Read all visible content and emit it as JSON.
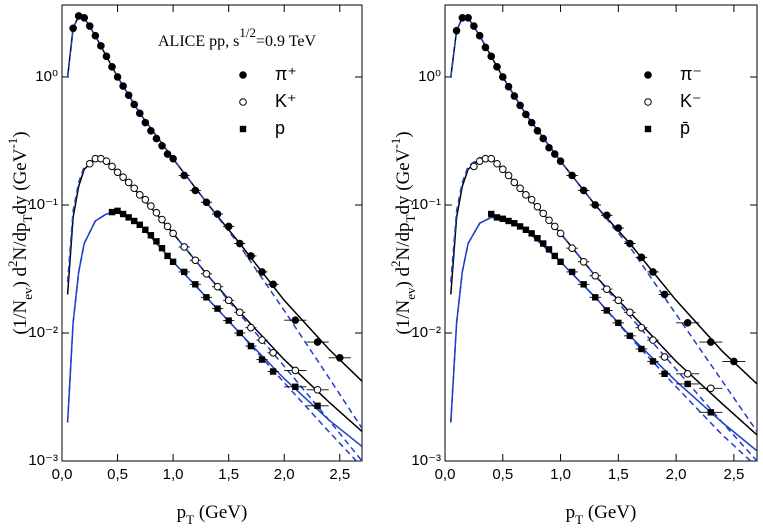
{
  "chart_data": [
    {
      "type": "scatter",
      "annotation": [
        {
          "t": "ALICE pp, s"
        },
        {
          "t": "1/2",
          "s": "sup"
        },
        {
          "t": "=0.9 TeV"
        }
      ],
      "xlabel": [
        {
          "t": "p"
        },
        {
          "t": "T",
          "s": "sub"
        },
        {
          "t": " (GeV)"
        }
      ],
      "ylabel": [
        {
          "t": "(1/N"
        },
        {
          "t": "ev",
          "s": "sub"
        },
        {
          "t": ") d"
        },
        {
          "t": "2",
          "s": "sup"
        },
        {
          "t": "N/dp"
        },
        {
          "t": "T",
          "s": "sub"
        },
        {
          "t": "dy  (GeV"
        },
        {
          "t": "-1",
          "s": "sup"
        },
        {
          "t": ")"
        }
      ],
      "log_y": true,
      "xlim": [
        0,
        2.7
      ],
      "ylim": [
        0.001,
        3.65
      ],
      "xticks": [
        {
          "value": 0,
          "label": "0,0"
        },
        {
          "value": 0.5,
          "label": "0,5"
        },
        {
          "value": 1,
          "label": "1,0"
        },
        {
          "value": 1.5,
          "label": "1,5"
        },
        {
          "value": 2,
          "label": "2,0"
        },
        {
          "value": 2.5,
          "label": "2,5"
        }
      ],
      "yticks": [
        {
          "value": 0.001,
          "label": "10⁻³"
        },
        {
          "value": 0.01,
          "label": "10⁻²"
        },
        {
          "value": 0.1,
          "label": "10⁻¹"
        },
        {
          "value": 1,
          "label": "10⁰"
        }
      ],
      "series": [
        {
          "name": "π⁺",
          "color": "#000000",
          "marker": "circle",
          "x": [
            0.1,
            0.15,
            0.2,
            0.25,
            0.3,
            0.35,
            0.4,
            0.45,
            0.5,
            0.55,
            0.6,
            0.65,
            0.7,
            0.75,
            0.8,
            0.85,
            0.9,
            0.95,
            1.0,
            1.1,
            1.2,
            1.3,
            1.4,
            1.5,
            1.6,
            1.7,
            1.8,
            1.9,
            2.1,
            2.3,
            2.5
          ],
          "values": [
            2.4,
            3.0,
            2.9,
            2.5,
            2.1,
            1.75,
            1.45,
            1.2,
            1.0,
            0.85,
            0.72,
            0.61,
            0.52,
            0.44,
            0.38,
            0.33,
            0.29,
            0.25,
            0.23,
            0.17,
            0.13,
            0.105,
            0.085,
            0.068,
            0.05,
            0.04,
            0.03,
            0.024,
            0.0126,
            0.0085,
            0.0064
          ],
          "xerr": [
            0.025,
            0.025,
            0.025,
            0.025,
            0.025,
            0.025,
            0.025,
            0.025,
            0.025,
            0.025,
            0.025,
            0.025,
            0.025,
            0.025,
            0.025,
            0.025,
            0.025,
            0.025,
            0.025,
            0.05,
            0.05,
            0.05,
            0.05,
            0.05,
            0.05,
            0.05,
            0.05,
            0.05,
            0.1,
            0.1,
            0.1
          ]
        },
        {
          "name": "K⁺",
          "color": "#000000",
          "marker": "open-circle",
          "x": [
            0.25,
            0.3,
            0.35,
            0.4,
            0.45,
            0.5,
            0.55,
            0.6,
            0.65,
            0.7,
            0.75,
            0.8,
            0.85,
            0.9,
            0.95,
            1.0,
            1.1,
            1.2,
            1.3,
            1.4,
            1.5,
            1.6,
            1.7,
            1.8,
            1.9,
            2.1,
            2.3
          ],
          "values": [
            0.21,
            0.23,
            0.23,
            0.22,
            0.2,
            0.18,
            0.165,
            0.15,
            0.135,
            0.12,
            0.11,
            0.098,
            0.087,
            0.077,
            0.068,
            0.06,
            0.047,
            0.037,
            0.029,
            0.023,
            0.018,
            0.0145,
            0.011,
            0.0088,
            0.007,
            0.0051,
            0.0036
          ],
          "xerr": [
            0.025,
            0.025,
            0.025,
            0.025,
            0.025,
            0.025,
            0.025,
            0.025,
            0.025,
            0.025,
            0.025,
            0.025,
            0.025,
            0.025,
            0.025,
            0.025,
            0.05,
            0.05,
            0.05,
            0.05,
            0.05,
            0.05,
            0.05,
            0.05,
            0.05,
            0.1,
            0.1
          ]
        },
        {
          "name": "p",
          "color": "#000000",
          "marker": "square",
          "x": [
            0.45,
            0.5,
            0.55,
            0.6,
            0.65,
            0.7,
            0.75,
            0.8,
            0.85,
            0.9,
            0.95,
            1.0,
            1.1,
            1.2,
            1.3,
            1.4,
            1.5,
            1.6,
            1.7,
            1.8,
            1.9,
            2.1,
            2.3
          ],
          "values": [
            0.088,
            0.09,
            0.085,
            0.08,
            0.075,
            0.07,
            0.064,
            0.058,
            0.052,
            0.046,
            0.04,
            0.036,
            0.03,
            0.024,
            0.019,
            0.0155,
            0.0125,
            0.01,
            0.0079,
            0.0062,
            0.005,
            0.0038,
            0.0027
          ],
          "xerr": [
            0.025,
            0.025,
            0.025,
            0.025,
            0.025,
            0.025,
            0.025,
            0.025,
            0.025,
            0.025,
            0.025,
            0.025,
            0.05,
            0.05,
            0.05,
            0.05,
            0.05,
            0.05,
            0.05,
            0.05,
            0.05,
            0.1,
            0.1
          ]
        }
      ],
      "curve_x": [
        0.05,
        0.1,
        0.15,
        0.2,
        0.3,
        0.4,
        0.5,
        0.7,
        1.0,
        1.3,
        1.6,
        2.0,
        2.4,
        2.7
      ],
      "curves": [
        {
          "color": "#000000",
          "dashed": false,
          "values": [
            1.0,
            2.4,
            3.0,
            2.9,
            2.1,
            1.45,
            1.0,
            0.52,
            0.23,
            0.105,
            0.05,
            0.018,
            0.0075,
            0.0042
          ]
        },
        {
          "color": "#1f3fc8",
          "dashed": true,
          "values": [
            1.0,
            2.4,
            3.0,
            2.9,
            2.1,
            1.45,
            1.0,
            0.52,
            0.23,
            0.105,
            0.048,
            0.015,
            0.0045,
            0.0018
          ]
        },
        {
          "color": "#000000",
          "dashed": false,
          "values": [
            0.02,
            0.08,
            0.14,
            0.19,
            0.23,
            0.22,
            0.18,
            0.12,
            0.06,
            0.029,
            0.0145,
            0.0062,
            0.0029,
            0.0017
          ]
        },
        {
          "color": "#1f3fc8",
          "dashed": true,
          "values": [
            0.025,
            0.09,
            0.15,
            0.2,
            0.235,
            0.22,
            0.18,
            0.12,
            0.06,
            0.029,
            0.014,
            0.0055,
            0.0021,
            0.001
          ]
        },
        {
          "color": "#1f3fc8",
          "dashed": false,
          "values": [
            0.002,
            0.012,
            0.03,
            0.05,
            0.075,
            0.085,
            0.088,
            0.07,
            0.036,
            0.019,
            0.01,
            0.0044,
            0.0021,
            0.0013
          ]
        },
        {
          "color": "#1f3fc8",
          "dashed": true,
          "values": [
            0.002,
            0.012,
            0.03,
            0.05,
            0.075,
            0.085,
            0.088,
            0.07,
            0.036,
            0.019,
            0.01,
            0.0041,
            0.0017,
            0.0009
          ]
        }
      ]
    },
    {
      "type": "scatter",
      "xlabel": [
        {
          "t": "p"
        },
        {
          "t": "T",
          "s": "sub"
        },
        {
          "t": " (GeV)"
        }
      ],
      "ylabel": [
        {
          "t": "(1/N"
        },
        {
          "t": "ev",
          "s": "sub"
        },
        {
          "t": ") d"
        },
        {
          "t": "2",
          "s": "sup"
        },
        {
          "t": "N/dp"
        },
        {
          "t": "T",
          "s": "sub"
        },
        {
          "t": "dy  (GeV"
        },
        {
          "t": "-1",
          "s": "sup"
        },
        {
          "t": ")"
        }
      ],
      "log_y": true,
      "xlim": [
        0,
        2.7
      ],
      "ylim": [
        0.001,
        3.65
      ],
      "xticks": [
        {
          "value": 0,
          "label": "0,0"
        },
        {
          "value": 0.5,
          "label": "0,5"
        },
        {
          "value": 1,
          "label": "1,0"
        },
        {
          "value": 1.5,
          "label": "1,5"
        },
        {
          "value": 2,
          "label": "2,0"
        },
        {
          "value": 2.5,
          "label": "2,5"
        }
      ],
      "yticks": [
        {
          "value": 0.001,
          "label": "10⁻³"
        },
        {
          "value": 0.01,
          "label": "10⁻²"
        },
        {
          "value": 0.1,
          "label": "10⁻¹"
        },
        {
          "value": 1,
          "label": "10⁰"
        }
      ],
      "series": [
        {
          "name": "π⁻",
          "color": "#000000",
          "marker": "circle",
          "x": [
            0.1,
            0.15,
            0.2,
            0.25,
            0.3,
            0.35,
            0.4,
            0.45,
            0.5,
            0.55,
            0.6,
            0.65,
            0.7,
            0.75,
            0.8,
            0.85,
            0.9,
            0.95,
            1.0,
            1.1,
            1.2,
            1.3,
            1.4,
            1.5,
            1.6,
            1.7,
            1.8,
            1.9,
            2.1,
            2.3,
            2.5
          ],
          "values": [
            2.3,
            2.9,
            2.9,
            2.5,
            2.1,
            1.7,
            1.45,
            1.2,
            1.0,
            0.84,
            0.71,
            0.6,
            0.51,
            0.44,
            0.38,
            0.33,
            0.28,
            0.25,
            0.22,
            0.17,
            0.13,
            0.1,
            0.083,
            0.066,
            0.05,
            0.039,
            0.03,
            0.02,
            0.012,
            0.0085,
            0.006
          ],
          "xerr": [
            0.025,
            0.025,
            0.025,
            0.025,
            0.025,
            0.025,
            0.025,
            0.025,
            0.025,
            0.025,
            0.025,
            0.025,
            0.025,
            0.025,
            0.025,
            0.025,
            0.025,
            0.025,
            0.025,
            0.05,
            0.05,
            0.05,
            0.05,
            0.05,
            0.05,
            0.05,
            0.05,
            0.05,
            0.1,
            0.1,
            0.1
          ]
        },
        {
          "name": "K⁻",
          "color": "#000000",
          "marker": "open-circle",
          "x": [
            0.25,
            0.3,
            0.35,
            0.4,
            0.45,
            0.5,
            0.55,
            0.6,
            0.65,
            0.7,
            0.75,
            0.8,
            0.85,
            0.9,
            0.95,
            1.0,
            1.1,
            1.2,
            1.3,
            1.4,
            1.5,
            1.6,
            1.7,
            1.8,
            1.9,
            2.1,
            2.3
          ],
          "values": [
            0.2,
            0.22,
            0.23,
            0.23,
            0.21,
            0.19,
            0.17,
            0.15,
            0.135,
            0.12,
            0.11,
            0.097,
            0.086,
            0.076,
            0.068,
            0.06,
            0.046,
            0.036,
            0.028,
            0.022,
            0.018,
            0.0145,
            0.011,
            0.0088,
            0.0065,
            0.0048,
            0.0037
          ],
          "xerr": [
            0.025,
            0.025,
            0.025,
            0.025,
            0.025,
            0.025,
            0.025,
            0.025,
            0.025,
            0.025,
            0.025,
            0.025,
            0.025,
            0.025,
            0.025,
            0.025,
            0.05,
            0.05,
            0.05,
            0.05,
            0.05,
            0.05,
            0.05,
            0.05,
            0.05,
            0.1,
            0.1
          ]
        },
        {
          "name": "p̄",
          "color": "#000000",
          "marker": "square",
          "x": [
            0.4,
            0.45,
            0.5,
            0.55,
            0.6,
            0.65,
            0.7,
            0.75,
            0.8,
            0.85,
            0.9,
            0.95,
            1.0,
            1.1,
            1.2,
            1.3,
            1.4,
            1.5,
            1.6,
            1.7,
            1.8,
            1.9,
            2.1,
            2.3
          ],
          "values": [
            0.085,
            0.08,
            0.078,
            0.075,
            0.072,
            0.068,
            0.064,
            0.06,
            0.055,
            0.05,
            0.045,
            0.04,
            0.036,
            0.03,
            0.024,
            0.019,
            0.015,
            0.012,
            0.0095,
            0.0075,
            0.006,
            0.0048,
            0.004,
            0.0024
          ],
          "xerr": [
            0.025,
            0.025,
            0.025,
            0.025,
            0.025,
            0.025,
            0.025,
            0.025,
            0.025,
            0.025,
            0.025,
            0.025,
            0.025,
            0.05,
            0.05,
            0.05,
            0.05,
            0.05,
            0.05,
            0.05,
            0.05,
            0.05,
            0.1,
            0.1
          ]
        }
      ],
      "curve_x": [
        0.05,
        0.1,
        0.15,
        0.2,
        0.3,
        0.4,
        0.5,
        0.7,
        1.0,
        1.3,
        1.6,
        2.0,
        2.4,
        2.7
      ],
      "curves": [
        {
          "color": "#000000",
          "dashed": false,
          "values": [
            1.0,
            2.3,
            2.9,
            2.9,
            2.1,
            1.45,
            1.0,
            0.51,
            0.22,
            0.1,
            0.05,
            0.018,
            0.0072,
            0.004
          ]
        },
        {
          "color": "#1f3fc8",
          "dashed": true,
          "values": [
            1.0,
            2.3,
            2.9,
            2.9,
            2.1,
            1.45,
            1.0,
            0.51,
            0.22,
            0.1,
            0.047,
            0.014,
            0.0042,
            0.0017
          ]
        },
        {
          "color": "#000000",
          "dashed": false,
          "values": [
            0.02,
            0.08,
            0.14,
            0.19,
            0.23,
            0.23,
            0.19,
            0.12,
            0.06,
            0.028,
            0.0145,
            0.006,
            0.0028,
            0.0016
          ]
        },
        {
          "color": "#1f3fc8",
          "dashed": true,
          "values": [
            0.025,
            0.09,
            0.15,
            0.2,
            0.235,
            0.225,
            0.19,
            0.12,
            0.06,
            0.028,
            0.0135,
            0.0052,
            0.002,
            0.001
          ]
        },
        {
          "color": "#1f3fc8",
          "dashed": false,
          "values": [
            0.002,
            0.012,
            0.03,
            0.05,
            0.072,
            0.08,
            0.078,
            0.064,
            0.036,
            0.019,
            0.0095,
            0.0042,
            0.002,
            0.0012
          ]
        },
        {
          "color": "#1f3fc8",
          "dashed": true,
          "values": [
            0.002,
            0.012,
            0.03,
            0.05,
            0.072,
            0.08,
            0.078,
            0.064,
            0.036,
            0.019,
            0.0093,
            0.0038,
            0.0016,
            0.0009
          ]
        }
      ]
    }
  ]
}
